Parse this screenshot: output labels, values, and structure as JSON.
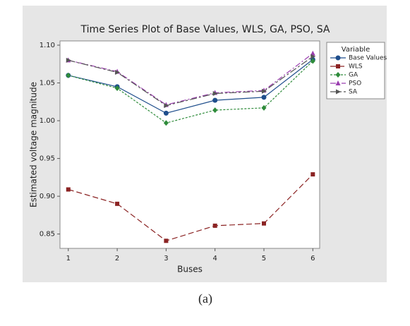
{
  "chart_data": {
    "type": "line",
    "title": "Time Series Plot of Base Values, WLS, GA, PSO, SA",
    "x_label": "Buses",
    "y_label": "Estimated voltage magnitude",
    "caption": "(a)",
    "legend_title": "Variable",
    "legend": "right",
    "x": [
      1,
      2,
      3,
      4,
      5,
      6
    ],
    "xlim": [
      0.83,
      6.14
    ],
    "xticks": [
      1,
      2,
      3,
      4,
      5,
      6
    ],
    "ylim": [
      0.831,
      1.1056
    ],
    "yticks": [
      0.85,
      {
        "value": 0.9,
        "label": "0.90"
      },
      0.95,
      {
        "value": 1.0,
        "label": "1.00"
      },
      1.05,
      {
        "value": 1.1,
        "label": "1.10"
      }
    ],
    "series": [
      {
        "name": "Base Values",
        "color": "#1f4e8c",
        "marker": "circle",
        "dash": "none",
        "values": [
          1.06,
          1.045,
          1.01,
          1.027,
          1.031,
          1.081
        ]
      },
      {
        "name": "WLS",
        "color": "#8b2323",
        "marker": "square",
        "dash": "8 4",
        "values": [
          0.909,
          0.89,
          0.841,
          0.861,
          0.864,
          0.929
        ]
      },
      {
        "name": "GA",
        "color": "#2e8b3a",
        "marker": "diamond",
        "dash": "3 2",
        "values": [
          1.06,
          1.043,
          0.997,
          1.014,
          1.017,
          1.079
        ]
      },
      {
        "name": "PSO",
        "color": "#9b3fb0",
        "marker": "triangle",
        "dash": "8 3 2 3",
        "values": [
          1.08,
          1.065,
          1.021,
          1.037,
          1.04,
          1.089
        ]
      },
      {
        "name": "SA",
        "color": "#555555",
        "marker": "triangle-right",
        "dash": "10 3 3 3",
        "values": [
          1.08,
          1.064,
          1.02,
          1.036,
          1.039,
          1.085
        ]
      }
    ]
  }
}
